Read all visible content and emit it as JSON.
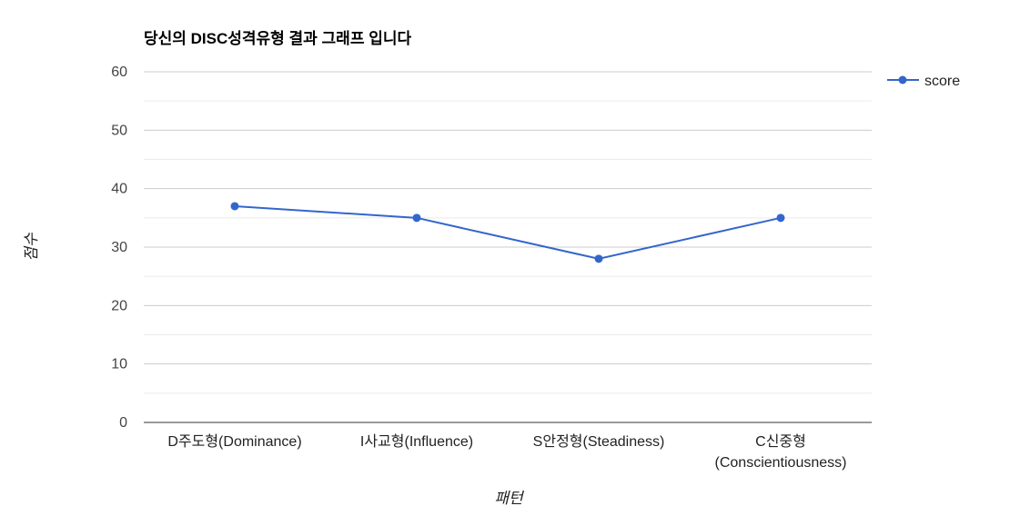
{
  "chart_data": {
    "type": "line",
    "title": "당신의 DISC성격유형 결과 그래프 입니다",
    "xlabel": "패턴",
    "ylabel": "점수",
    "categories": [
      [
        "D주도형(Dominance)"
      ],
      [
        "I사교형(Influence)"
      ],
      [
        "S안정형(Steadiness)"
      ],
      [
        "C신중형",
        "(Conscientiousness)"
      ]
    ],
    "series": [
      {
        "name": "score",
        "values": [
          37,
          35,
          28,
          35
        ],
        "color": "#3366cc"
      }
    ],
    "ylim": [
      0,
      60
    ],
    "yticks": [
      0,
      10,
      20,
      30,
      40,
      50,
      60
    ],
    "grid": true,
    "minor_grid": true,
    "legend": "right"
  }
}
